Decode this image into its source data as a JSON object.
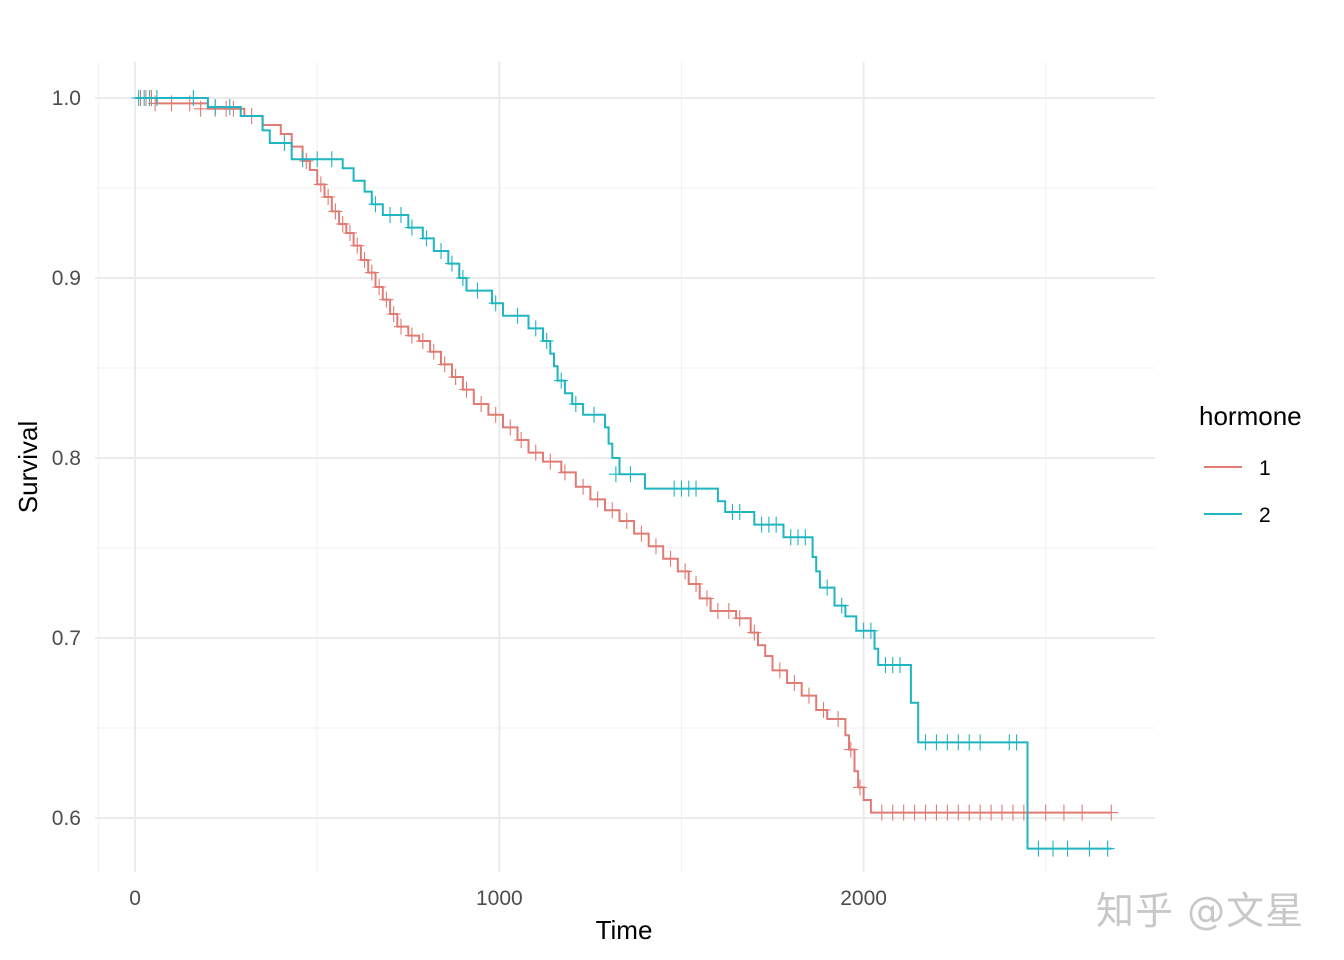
{
  "chart_data": {
    "type": "line",
    "title": "",
    "xlabel": "Time",
    "ylabel": "Survival",
    "xlim": [
      -110,
      2800
    ],
    "ylim": [
      0.57,
      1.02
    ],
    "x_major_ticks": [
      0,
      1000,
      2000
    ],
    "x_tick_labels": [
      "0",
      "1000",
      "2000"
    ],
    "x_minor_ticks": [
      -100,
      500,
      1500,
      2500
    ],
    "y_major_ticks": [
      0.6,
      0.7,
      0.8,
      0.9,
      1.0
    ],
    "y_tick_labels": [
      "0.6",
      "0.7",
      "0.8",
      "0.9",
      "1.0"
    ],
    "y_minor_ticks": [
      0.65,
      0.75,
      0.85,
      0.95
    ],
    "grid": true,
    "legend": {
      "title": "hormone",
      "position": "right"
    },
    "series": [
      {
        "name": "1",
        "color": "#e07b74",
        "steps": [
          [
            0,
            1.0
          ],
          [
            60,
            0.997
          ],
          [
            200,
            0.994
          ],
          [
            300,
            0.99
          ],
          [
            350,
            0.985
          ],
          [
            400,
            0.98
          ],
          [
            430,
            0.973
          ],
          [
            460,
            0.965
          ],
          [
            480,
            0.96
          ],
          [
            500,
            0.952
          ],
          [
            520,
            0.945
          ],
          [
            540,
            0.937
          ],
          [
            560,
            0.93
          ],
          [
            580,
            0.925
          ],
          [
            600,
            0.918
          ],
          [
            620,
            0.91
          ],
          [
            640,
            0.903
          ],
          [
            660,
            0.895
          ],
          [
            680,
            0.888
          ],
          [
            700,
            0.88
          ],
          [
            720,
            0.873
          ],
          [
            750,
            0.868
          ],
          [
            780,
            0.865
          ],
          [
            810,
            0.859
          ],
          [
            840,
            0.852
          ],
          [
            870,
            0.845
          ],
          [
            900,
            0.838
          ],
          [
            930,
            0.83
          ],
          [
            970,
            0.824
          ],
          [
            1010,
            0.817
          ],
          [
            1050,
            0.81
          ],
          [
            1080,
            0.803
          ],
          [
            1120,
            0.798
          ],
          [
            1170,
            0.792
          ],
          [
            1210,
            0.784
          ],
          [
            1250,
            0.777
          ],
          [
            1290,
            0.771
          ],
          [
            1330,
            0.765
          ],
          [
            1370,
            0.758
          ],
          [
            1410,
            0.751
          ],
          [
            1450,
            0.744
          ],
          [
            1490,
            0.737
          ],
          [
            1520,
            0.73
          ],
          [
            1550,
            0.722
          ],
          [
            1580,
            0.715
          ],
          [
            1650,
            0.711
          ],
          [
            1690,
            0.703
          ],
          [
            1710,
            0.696
          ],
          [
            1730,
            0.69
          ],
          [
            1750,
            0.682
          ],
          [
            1790,
            0.675
          ],
          [
            1830,
            0.668
          ],
          [
            1870,
            0.66
          ],
          [
            1900,
            0.655
          ],
          [
            1950,
            0.646
          ],
          [
            1960,
            0.638
          ],
          [
            1975,
            0.626
          ],
          [
            1985,
            0.617
          ],
          [
            2000,
            0.61
          ],
          [
            2020,
            0.603
          ],
          [
            2680,
            0.603
          ]
        ],
        "censored": [
          [
            15,
            1.0
          ],
          [
            30,
            1.0
          ],
          [
            45,
            1.0
          ],
          [
            55,
            0.997
          ],
          [
            100,
            0.997
          ],
          [
            150,
            0.997
          ],
          [
            180,
            0.994
          ],
          [
            220,
            0.994
          ],
          [
            250,
            0.994
          ],
          [
            270,
            0.994
          ],
          [
            320,
            0.99
          ],
          [
            470,
            0.965
          ],
          [
            510,
            0.952
          ],
          [
            530,
            0.945
          ],
          [
            550,
            0.937
          ],
          [
            570,
            0.93
          ],
          [
            590,
            0.925
          ],
          [
            610,
            0.918
          ],
          [
            630,
            0.91
          ],
          [
            650,
            0.903
          ],
          [
            670,
            0.895
          ],
          [
            690,
            0.888
          ],
          [
            710,
            0.88
          ],
          [
            730,
            0.873
          ],
          [
            760,
            0.868
          ],
          [
            790,
            0.865
          ],
          [
            820,
            0.859
          ],
          [
            850,
            0.852
          ],
          [
            880,
            0.845
          ],
          [
            910,
            0.838
          ],
          [
            950,
            0.83
          ],
          [
            990,
            0.824
          ],
          [
            1030,
            0.817
          ],
          [
            1060,
            0.81
          ],
          [
            1100,
            0.803
          ],
          [
            1140,
            0.798
          ],
          [
            1180,
            0.792
          ],
          [
            1230,
            0.784
          ],
          [
            1270,
            0.777
          ],
          [
            1310,
            0.771
          ],
          [
            1350,
            0.765
          ],
          [
            1390,
            0.758
          ],
          [
            1430,
            0.751
          ],
          [
            1470,
            0.744
          ],
          [
            1510,
            0.737
          ],
          [
            1540,
            0.73
          ],
          [
            1570,
            0.722
          ],
          [
            1600,
            0.715
          ],
          [
            1630,
            0.715
          ],
          [
            1660,
            0.711
          ],
          [
            1700,
            0.703
          ],
          [
            1770,
            0.682
          ],
          [
            1810,
            0.675
          ],
          [
            1850,
            0.668
          ],
          [
            1890,
            0.66
          ],
          [
            1930,
            0.655
          ],
          [
            1965,
            0.638
          ],
          [
            1990,
            0.617
          ],
          [
            2050,
            0.603
          ],
          [
            2080,
            0.603
          ],
          [
            2110,
            0.603
          ],
          [
            2140,
            0.603
          ],
          [
            2170,
            0.603
          ],
          [
            2200,
            0.603
          ],
          [
            2230,
            0.603
          ],
          [
            2260,
            0.603
          ],
          [
            2290,
            0.603
          ],
          [
            2320,
            0.603
          ],
          [
            2350,
            0.603
          ],
          [
            2380,
            0.603
          ],
          [
            2410,
            0.603
          ],
          [
            2440,
            0.603
          ],
          [
            2500,
            0.603
          ],
          [
            2550,
            0.603
          ],
          [
            2600,
            0.603
          ],
          [
            2680,
            0.603
          ]
        ]
      },
      {
        "name": "2",
        "color": "#1fb5c1",
        "steps": [
          [
            0,
            1.0
          ],
          [
            200,
            0.995
          ],
          [
            290,
            0.99
          ],
          [
            350,
            0.982
          ],
          [
            370,
            0.975
          ],
          [
            430,
            0.966
          ],
          [
            480,
            0.966
          ],
          [
            570,
            0.961
          ],
          [
            600,
            0.954
          ],
          [
            630,
            0.948
          ],
          [
            650,
            0.941
          ],
          [
            680,
            0.935
          ],
          [
            720,
            0.935
          ],
          [
            750,
            0.928
          ],
          [
            790,
            0.922
          ],
          [
            820,
            0.915
          ],
          [
            860,
            0.908
          ],
          [
            890,
            0.9
          ],
          [
            910,
            0.893
          ],
          [
            960,
            0.893
          ],
          [
            980,
            0.886
          ],
          [
            1010,
            0.879
          ],
          [
            1080,
            0.872
          ],
          [
            1120,
            0.865
          ],
          [
            1140,
            0.858
          ],
          [
            1150,
            0.851
          ],
          [
            1160,
            0.843
          ],
          [
            1180,
            0.836
          ],
          [
            1200,
            0.83
          ],
          [
            1230,
            0.824
          ],
          [
            1290,
            0.817
          ],
          [
            1300,
            0.808
          ],
          [
            1310,
            0.8
          ],
          [
            1330,
            0.791
          ],
          [
            1400,
            0.783
          ],
          [
            1600,
            0.776
          ],
          [
            1620,
            0.77
          ],
          [
            1700,
            0.763
          ],
          [
            1780,
            0.756
          ],
          [
            1860,
            0.745
          ],
          [
            1870,
            0.737
          ],
          [
            1880,
            0.728
          ],
          [
            1920,
            0.718
          ],
          [
            1950,
            0.712
          ],
          [
            1980,
            0.704
          ],
          [
            2030,
            0.694
          ],
          [
            2040,
            0.685
          ],
          [
            2130,
            0.664
          ],
          [
            2150,
            0.642
          ],
          [
            2440,
            0.642
          ],
          [
            2450,
            0.583
          ],
          [
            2680,
            0.583
          ]
        ],
        "censored": [
          [
            10,
            1.0
          ],
          [
            25,
            1.0
          ],
          [
            40,
            1.0
          ],
          [
            60,
            1.0
          ],
          [
            160,
            1.0
          ],
          [
            220,
            0.995
          ],
          [
            260,
            0.995
          ],
          [
            410,
            0.975
          ],
          [
            460,
            0.966
          ],
          [
            500,
            0.966
          ],
          [
            540,
            0.966
          ],
          [
            660,
            0.941
          ],
          [
            700,
            0.935
          ],
          [
            730,
            0.935
          ],
          [
            760,
            0.928
          ],
          [
            800,
            0.922
          ],
          [
            840,
            0.915
          ],
          [
            870,
            0.908
          ],
          [
            900,
            0.9
          ],
          [
            940,
            0.893
          ],
          [
            990,
            0.886
          ],
          [
            1050,
            0.879
          ],
          [
            1100,
            0.872
          ],
          [
            1130,
            0.865
          ],
          [
            1170,
            0.843
          ],
          [
            1210,
            0.83
          ],
          [
            1260,
            0.824
          ],
          [
            1320,
            0.791
          ],
          [
            1360,
            0.791
          ],
          [
            1480,
            0.783
          ],
          [
            1500,
            0.783
          ],
          [
            1520,
            0.783
          ],
          [
            1540,
            0.783
          ],
          [
            1640,
            0.77
          ],
          [
            1660,
            0.77
          ],
          [
            1720,
            0.763
          ],
          [
            1740,
            0.763
          ],
          [
            1760,
            0.763
          ],
          [
            1800,
            0.756
          ],
          [
            1820,
            0.756
          ],
          [
            1840,
            0.756
          ],
          [
            1900,
            0.728
          ],
          [
            1940,
            0.718
          ],
          [
            2000,
            0.704
          ],
          [
            2020,
            0.704
          ],
          [
            2060,
            0.685
          ],
          [
            2080,
            0.685
          ],
          [
            2100,
            0.685
          ],
          [
            2170,
            0.642
          ],
          [
            2200,
            0.642
          ],
          [
            2230,
            0.642
          ],
          [
            2260,
            0.642
          ],
          [
            2290,
            0.642
          ],
          [
            2320,
            0.642
          ],
          [
            2400,
            0.642
          ],
          [
            2420,
            0.642
          ],
          [
            2480,
            0.583
          ],
          [
            2520,
            0.583
          ],
          [
            2560,
            0.583
          ],
          [
            2620,
            0.583
          ],
          [
            2670,
            0.583
          ]
        ]
      }
    ]
  },
  "watermark": "知乎 @文星"
}
